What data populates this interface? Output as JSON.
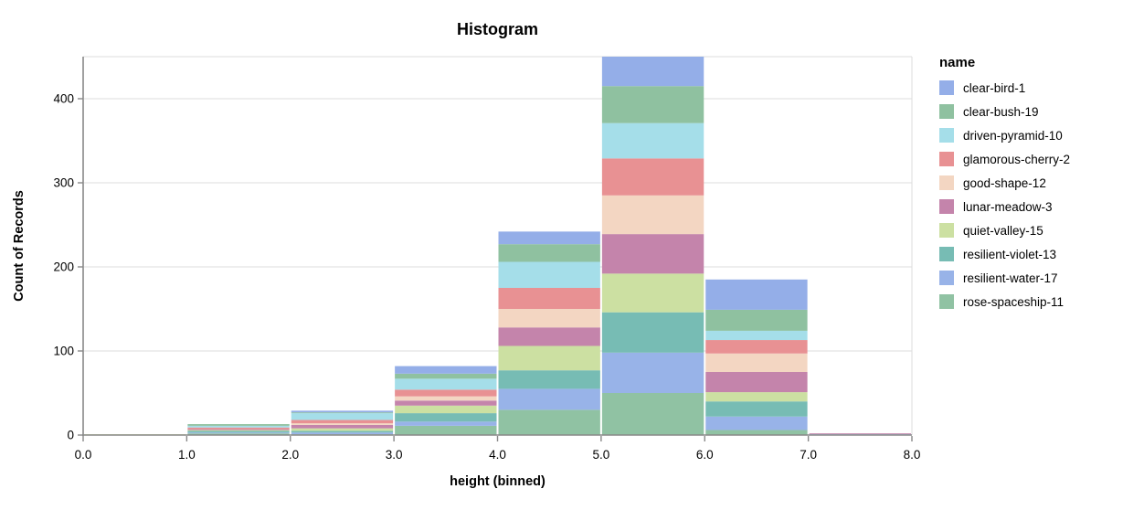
{
  "chart_data": {
    "type": "bar",
    "variant": "stacked-histogram",
    "title": "Histogram",
    "xlabel": "height (binned)",
    "ylabel": "Count of Records",
    "legend_title": "name",
    "legend_position": "right",
    "grid": true,
    "x_domain": [
      0,
      8
    ],
    "y_domain": [
      0,
      450
    ],
    "bin_edges": [
      0,
      1,
      2,
      3,
      4,
      5,
      6,
      7,
      8
    ],
    "x_tick_labels": [
      "0.0",
      "1.0",
      "2.0",
      "3.0",
      "4.0",
      "5.0",
      "6.0",
      "7.0",
      "8.0"
    ],
    "y_tick_labels": [
      "0",
      "100",
      "200",
      "300",
      "400"
    ],
    "y_tick_values": [
      0,
      100,
      200,
      300,
      400
    ],
    "stack_note": "stacked bottom-to-top in reverse series order (first series renders on top)",
    "series": [
      {
        "name": "clear-bird-1",
        "color": "#94aee8",
        "values": [
          0,
          0,
          2,
          9,
          15,
          36,
          36,
          0
        ]
      },
      {
        "name": "clear-bush-19",
        "color": "#8fc1a0",
        "values": [
          0,
          2,
          1,
          6,
          21,
          44,
          25,
          0
        ]
      },
      {
        "name": "driven-pyramid-10",
        "color": "#a5dee9",
        "values": [
          0,
          2,
          8,
          13,
          31,
          42,
          11,
          0
        ]
      },
      {
        "name": "glamorous-cherry-2",
        "color": "#e89193",
        "values": [
          0,
          2,
          4,
          8,
          25,
          44,
          16,
          0
        ]
      },
      {
        "name": "good-shape-12",
        "color": "#f3d6c2",
        "values": [
          0,
          0,
          2,
          5,
          22,
          46,
          22,
          0
        ]
      },
      {
        "name": "lunar-meadow-3",
        "color": "#c484ab",
        "values": [
          0,
          1,
          4,
          6,
          22,
          47,
          24,
          1
        ]
      },
      {
        "name": "quiet-valley-15",
        "color": "#cce0a2",
        "values": [
          1,
          1,
          3,
          9,
          29,
          46,
          11,
          0
        ]
      },
      {
        "name": "resilient-violet-13",
        "color": "#77bcb4",
        "values": [
          0,
          2,
          2,
          10,
          22,
          48,
          18,
          0
        ]
      },
      {
        "name": "resilient-water-17",
        "color": "#98b3e8",
        "values": [
          0,
          1,
          2,
          5,
          25,
          48,
          16,
          1
        ]
      },
      {
        "name": "rose-spaceship-11",
        "color": "#90c2a3",
        "values": [
          0,
          2,
          1,
          11,
          30,
          50,
          6,
          0
        ]
      }
    ],
    "bin_totals": [
      1,
      13,
      29,
      82,
      242,
      451,
      185,
      2
    ]
  },
  "colors": {
    "gridline": "#dddddd",
    "view_border": "#dddddd",
    "axis_line": "#888888",
    "tick": "#888888",
    "label_text": "#000000",
    "background": "#ffffff"
  }
}
